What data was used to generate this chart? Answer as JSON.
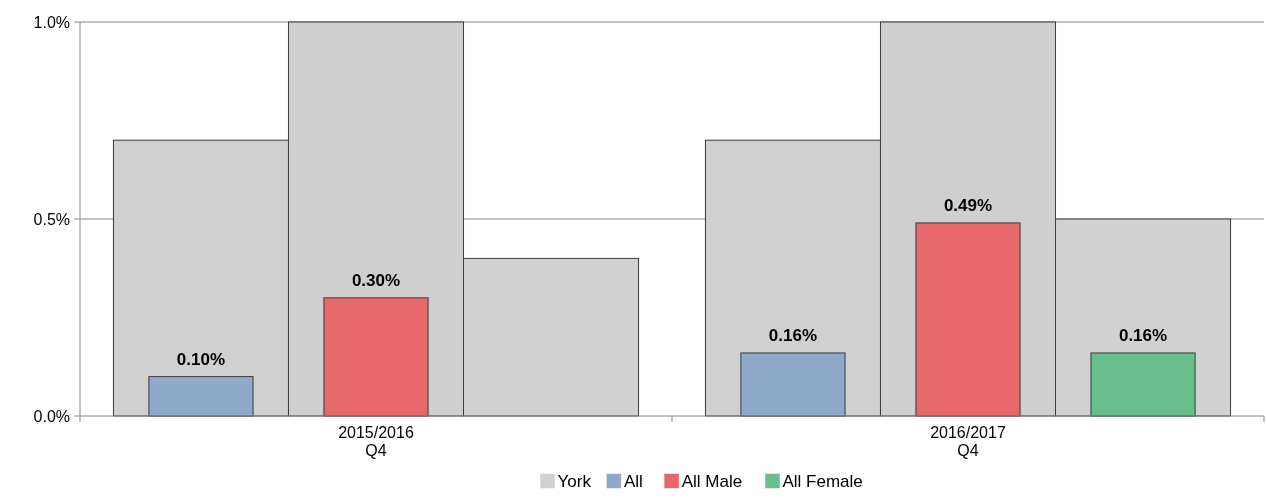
{
  "chart_data": {
    "type": "bar",
    "categories": [
      "2015/2016\nQ4",
      "2016/2017\nQ4"
    ],
    "series": [
      {
        "name": "York",
        "color": "#d0d0d0",
        "values": [
          0.7,
          0.7
        ]
      },
      {
        "color": "#cfcfcf",
        "values": [
          1.0,
          1.0
        ]
      },
      {
        "color": "#d1d1d1",
        "values": [
          0.4,
          0.5
        ]
      },
      {
        "name": "All",
        "color": "#8fa9cb",
        "values": [
          0.1,
          0.16
        ],
        "value_labels": [
          "0.10%",
          "0.16%"
        ]
      },
      {
        "name": "All Male",
        "color": "#e6686a",
        "values": [
          0.3,
          0.49
        ],
        "value_labels": [
          "0.30%",
          "0.49%"
        ]
      },
      {
        "name": "All Female",
        "color": "#66bf8c",
        "values": [
          null,
          0.16
        ],
        "value_labels": [
          null,
          "0.16%"
        ]
      }
    ],
    "ylim": [
      0,
      1.0
    ],
    "yticks": [
      {
        "value": 0,
        "label": "0.0%"
      },
      {
        "value": 0.5,
        "label": "0.5%"
      },
      {
        "value": 1.0,
        "label": "1.0%"
      }
    ],
    "grid": "y",
    "legend": "bottom"
  }
}
